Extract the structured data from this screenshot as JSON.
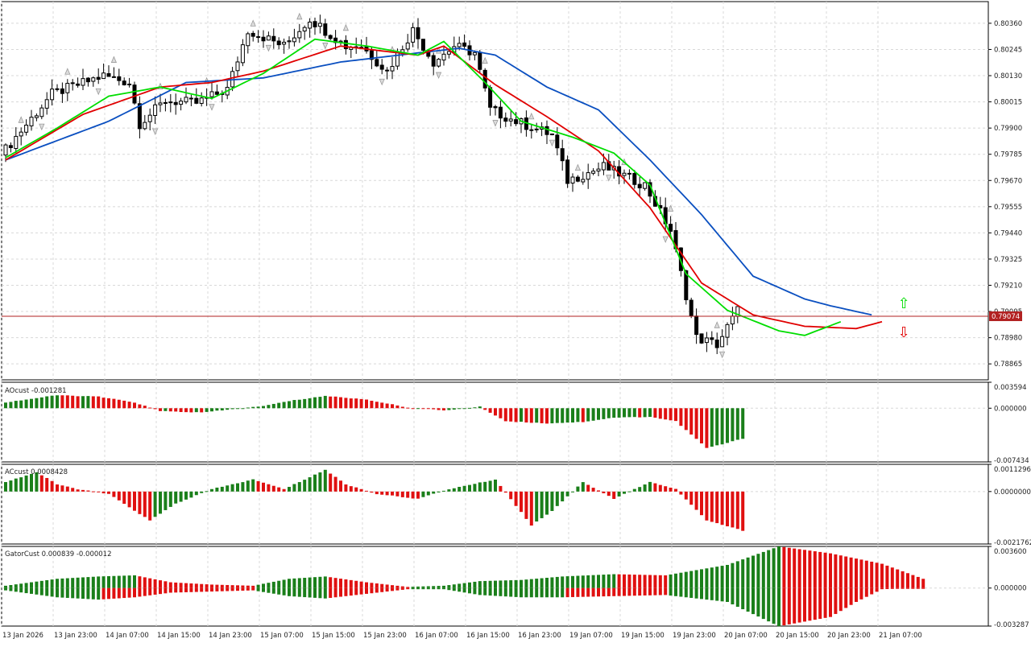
{
  "chart_data": [
    {
      "type": "candlestick",
      "pane": "main",
      "symbol_price_levels": [
        "0.80360",
        "0.80245",
        "0.80130",
        "0.80015",
        "0.79900",
        "0.79785",
        "0.79670",
        "0.79555",
        "0.79440",
        "0.79325",
        "0.79210",
        "0.79095",
        "0.78980",
        "0.78865"
      ],
      "ylim": [
        0.78795,
        0.80455
      ],
      "current_price": 0.79074,
      "current_price_label": "0.79074",
      "candle_count": 143,
      "ohlc_anchors": [
        [
          0,
          0.7978
        ],
        [
          10,
          0.8005
        ],
        [
          20,
          0.8013
        ],
        [
          25,
          0.801
        ],
        [
          27,
          0.7992
        ],
        [
          32,
          0.8002
        ],
        [
          38,
          0.8001
        ],
        [
          44,
          0.8007
        ],
        [
          48,
          0.8033
        ],
        [
          55,
          0.8026
        ],
        [
          60,
          0.8038
        ],
        [
          67,
          0.8026
        ],
        [
          70,
          0.8026
        ],
        [
          75,
          0.8015
        ],
        [
          80,
          0.8033
        ],
        [
          84,
          0.8019
        ],
        [
          88,
          0.8026
        ],
        [
          92,
          0.8023
        ],
        [
          95,
          0.7998
        ],
        [
          100,
          0.7993
        ],
        [
          107,
          0.7987
        ],
        [
          110,
          0.7967
        ],
        [
          117,
          0.7973
        ],
        [
          125,
          0.7965
        ],
        [
          130,
          0.7945
        ],
        [
          135,
          0.7898
        ],
        [
          139,
          0.7895
        ],
        [
          143,
          0.791
        ],
        [
          149,
          0.7887
        ],
        [
          154,
          0.7892
        ],
        [
          158,
          0.7915
        ],
        [
          162,
          0.7907
        ],
        [
          166,
          0.789
        ],
        [
          170,
          0.7907
        ],
        [
          175,
          0.7896
        ],
        [
          180,
          0.7907
        ],
        [
          183,
          0.79074
        ]
      ],
      "alligator": {
        "jaw": [
          [
            0,
            0.7976
          ],
          [
            20,
            0.7993
          ],
          [
            35,
            0.801
          ],
          [
            50,
            0.8012
          ],
          [
            65,
            0.8019
          ],
          [
            80,
            0.8023
          ],
          [
            88,
            0.8025
          ],
          [
            95,
            0.8022
          ],
          [
            105,
            0.8008
          ],
          [
            115,
            0.7998
          ],
          [
            125,
            0.7976
          ],
          [
            135,
            0.7952
          ],
          [
            145,
            0.7925
          ],
          [
            155,
            0.7915
          ],
          [
            160,
            0.7912
          ],
          [
            168,
            0.7908
          ]
        ],
        "teeth": [
          [
            0,
            0.7976
          ],
          [
            15,
            0.7996
          ],
          [
            30,
            0.8008
          ],
          [
            40,
            0.801
          ],
          [
            50,
            0.8015
          ],
          [
            65,
            0.8026
          ],
          [
            80,
            0.8022
          ],
          [
            85,
            0.8026
          ],
          [
            95,
            0.8009
          ],
          [
            105,
            0.7995
          ],
          [
            115,
            0.798
          ],
          [
            125,
            0.7955
          ],
          [
            135,
            0.7922
          ],
          [
            145,
            0.7908
          ],
          [
            155,
            0.7903
          ],
          [
            165,
            0.7902
          ],
          [
            170,
            0.7905
          ]
        ],
        "lips": [
          [
            0,
            0.7977
          ],
          [
            10,
            0.799
          ],
          [
            20,
            0.8004
          ],
          [
            30,
            0.8008
          ],
          [
            40,
            0.8003
          ],
          [
            50,
            0.8014
          ],
          [
            60,
            0.8029
          ],
          [
            70,
            0.8026
          ],
          [
            80,
            0.8022
          ],
          [
            85,
            0.8028
          ],
          [
            93,
            0.801
          ],
          [
            100,
            0.7993
          ],
          [
            110,
            0.7986
          ],
          [
            118,
            0.7979
          ],
          [
            125,
            0.7965
          ],
          [
            132,
            0.7926
          ],
          [
            140,
            0.791
          ],
          [
            150,
            0.7901
          ],
          [
            155,
            0.7899
          ],
          [
            162,
            0.7905
          ]
        ]
      },
      "ao_marks": {
        "up_arrow_label": "⇧",
        "down_arrow_label": "⇩"
      }
    },
    {
      "type": "bar",
      "pane": "AOcust",
      "label": "AOcust -0.001281",
      "ticks": [
        "0.003594",
        "0.000000",
        "-0.007434"
      ],
      "ylim": [
        -0.007434,
        0.003594
      ],
      "bar_count": 143,
      "anchors": [
        [
          0,
          0.0008
        ],
        [
          10,
          0.0018
        ],
        [
          18,
          0.0016
        ],
        [
          25,
          0.0008
        ],
        [
          30,
          -0.0004
        ],
        [
          38,
          -0.0006
        ],
        [
          42,
          -0.0003
        ],
        [
          50,
          0.0003
        ],
        [
          55,
          0.001
        ],
        [
          62,
          0.0017
        ],
        [
          70,
          0.0012
        ],
        [
          78,
          0.0001
        ],
        [
          85,
          -0.0003
        ],
        [
          92,
          0.0002
        ],
        [
          97,
          -0.0018
        ],
        [
          105,
          -0.0021
        ],
        [
          112,
          -0.0019
        ],
        [
          118,
          -0.0013
        ],
        [
          125,
          -0.0012
        ],
        [
          130,
          -0.0018
        ],
        [
          136,
          -0.0055
        ],
        [
          139,
          -0.005
        ],
        [
          145,
          -0.0038
        ],
        [
          155,
          -0.0027
        ],
        [
          165,
          -0.0014
        ],
        [
          171,
          -0.0003
        ]
      ]
    },
    {
      "type": "bar",
      "pane": "ACcust",
      "label": "ACcust 0.0008428",
      "ticks": [
        "0.0011296",
        "0.0000000",
        "-0.0021762"
      ],
      "ylim": [
        -0.0021762,
        0.0011296
      ],
      "bar_count": 143,
      "anchors": [
        [
          0,
          0.0004
        ],
        [
          6,
          0.0008
        ],
        [
          10,
          0.0003
        ],
        [
          14,
          0.0001
        ],
        [
          20,
          -0.0001
        ],
        [
          28,
          -0.0012
        ],
        [
          33,
          -0.0005
        ],
        [
          40,
          0.0001
        ],
        [
          48,
          0.0005
        ],
        [
          54,
          0.0001
        ],
        [
          62,
          0.0009
        ],
        [
          66,
          0.0003
        ],
        [
          72,
          -0.0001
        ],
        [
          80,
          -0.0003
        ],
        [
          86,
          0.0001
        ],
        [
          95,
          0.0005
        ],
        [
          102,
          -0.0014
        ],
        [
          106,
          -0.0008
        ],
        [
          112,
          0.0004
        ],
        [
          118,
          -0.0003
        ],
        [
          125,
          0.0004
        ],
        [
          130,
          0.0001
        ],
        [
          136,
          -0.0012
        ],
        [
          146,
          -0.0018
        ],
        [
          150,
          -0.0004
        ],
        [
          155,
          0.0005
        ],
        [
          160,
          0.0003
        ],
        [
          166,
          0.0004
        ],
        [
          171,
          0.0008
        ]
      ]
    },
    {
      "type": "bar",
      "pane": "GatorCust",
      "label": "GatorCust 0.000839 -0.000012",
      "ticks": [
        "0.003600",
        "0.000000",
        "-0.003287"
      ],
      "ylim": [
        -0.003287,
        0.0036
      ],
      "bar_count": 143,
      "upper_anchors": [
        [
          0,
          0.0002
        ],
        [
          10,
          0.0008
        ],
        [
          18,
          0.001
        ],
        [
          25,
          0.0011
        ],
        [
          32,
          0.0005
        ],
        [
          40,
          0.0003
        ],
        [
          48,
          0.0002
        ],
        [
          55,
          0.0008
        ],
        [
          62,
          0.001
        ],
        [
          70,
          0.0005
        ],
        [
          78,
          0.0001
        ],
        [
          85,
          0.0002
        ],
        [
          92,
          0.0006
        ],
        [
          100,
          0.0007
        ],
        [
          108,
          0.001
        ],
        [
          118,
          0.0012
        ],
        [
          128,
          0.0011
        ],
        [
          140,
          0.002
        ],
        [
          150,
          0.0036
        ],
        [
          160,
          0.003
        ],
        [
          170,
          0.0021
        ],
        [
          178,
          0.0008
        ]
      ],
      "lower_anchors": [
        [
          0,
          -0.0002
        ],
        [
          10,
          -0.0008
        ],
        [
          18,
          -0.001
        ],
        [
          25,
          -0.0008
        ],
        [
          32,
          -0.0004
        ],
        [
          40,
          -0.0003
        ],
        [
          48,
          -0.0002
        ],
        [
          55,
          -0.0007
        ],
        [
          62,
          -0.0009
        ],
        [
          70,
          -0.0005
        ],
        [
          78,
          -0.0001
        ],
        [
          85,
          -0.0001
        ],
        [
          92,
          -0.0006
        ],
        [
          100,
          -0.0008
        ],
        [
          108,
          -0.0008
        ],
        [
          118,
          -0.0007
        ],
        [
          128,
          -0.0006
        ],
        [
          140,
          -0.0012
        ],
        [
          150,
          -0.0033
        ],
        [
          160,
          -0.0025
        ],
        [
          165,
          -0.0012
        ],
        [
          170,
          -0.0001
        ],
        [
          178,
          0.0
        ]
      ]
    }
  ],
  "time_axis": [
    "13 Jan 2026",
    "13 Jan 23:00",
    "14 Jan 07:00",
    "14 Jan 15:00",
    "14 Jan 23:00",
    "15 Jan 07:00",
    "15 Jan 15:00",
    "15 Jan 23:00",
    "16 Jan 07:00",
    "16 Jan 15:00",
    "16 Jan 23:00",
    "19 Jan 07:00",
    "19 Jan 15:00",
    "19 Jan 23:00",
    "20 Jan 07:00",
    "20 Jan 15:00",
    "20 Jan 23:00",
    "21 Jan 07:00"
  ],
  "colors": {
    "bull_candle": "#ffffff",
    "bear_candle": "#000000",
    "jaw": "#0a4fc0",
    "teeth": "#e00000",
    "lips": "#00dd00",
    "hist_up": "#1a7f1a",
    "hist_down": "#e01010",
    "grid": "#d8d8d8",
    "price_line": "#b22222",
    "fractal": "#9a9a9a"
  }
}
